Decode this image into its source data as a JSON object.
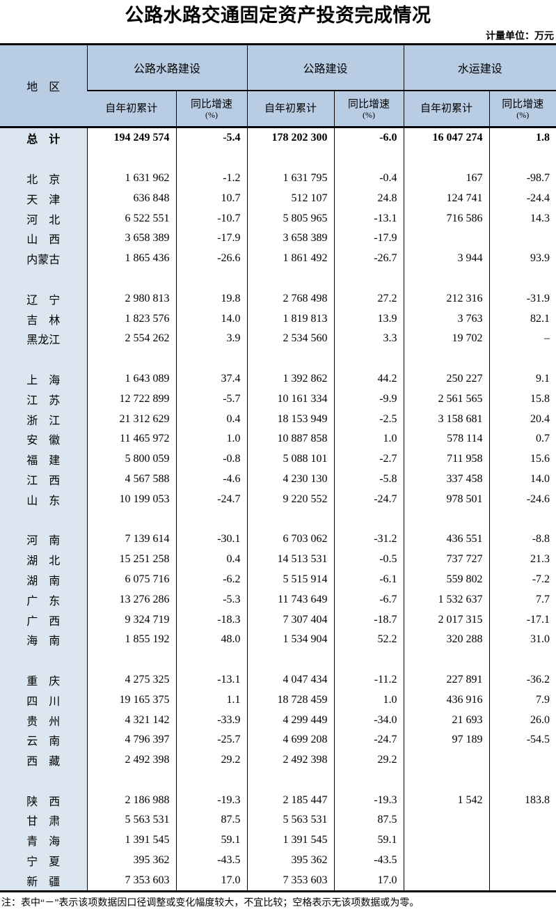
{
  "title": "公路水路交通固定资产投资完成情况",
  "unit_note": "计量单位：万元",
  "footnote": "注：表中“－”表示该项数据因口径调整或变化幅度较大，不宜比较；空格表示无该项数据或为零。",
  "colors": {
    "header_bg": "#B8CCE4",
    "region_col_bg": "#DCE6F1",
    "border": "#000000"
  },
  "table": {
    "region_header": "地　区",
    "groups": [
      "公路水路建设",
      "公路建设",
      "水运建设"
    ],
    "sub_cumulative": "自年初累计",
    "sub_growth_label": "同比增速",
    "sub_growth_unit": "(%)",
    "rows": [
      {
        "region": "总　计",
        "bold": true,
        "values": [
          "194 249 574",
          "-5.4",
          "178 202 300",
          "-6.0",
          "16 047 274",
          "1.8"
        ]
      },
      {
        "blank": true
      },
      {
        "region": "北　京",
        "values": [
          "1 631 962",
          "-1.2",
          "1 631 795",
          "-0.4",
          "167",
          "-98.7"
        ]
      },
      {
        "region": "天　津",
        "values": [
          "636 848",
          "10.7",
          "512 107",
          "24.8",
          "124 741",
          "-24.4"
        ]
      },
      {
        "region": "河　北",
        "values": [
          "6 522 551",
          "-10.7",
          "5 805 965",
          "-13.1",
          "716 586",
          "14.3"
        ]
      },
      {
        "region": "山　西",
        "values": [
          "3 658 389",
          "-17.9",
          "3 658 389",
          "-17.9",
          "",
          ""
        ]
      },
      {
        "region": "内蒙古",
        "values": [
          "1 865 436",
          "-26.6",
          "1 861 492",
          "-26.7",
          "3 944",
          "93.9"
        ]
      },
      {
        "blank": true
      },
      {
        "region": "辽　宁",
        "values": [
          "2 980 813",
          "19.8",
          "2 768 498",
          "27.2",
          "212 316",
          "-31.9"
        ]
      },
      {
        "region": "吉　林",
        "values": [
          "1 823 576",
          "14.0",
          "1 819 813",
          "13.9",
          "3 763",
          "82.1"
        ]
      },
      {
        "region": "黑龙江",
        "values": [
          "2 554 262",
          "3.9",
          "2 534 560",
          "3.3",
          "19 702",
          "–"
        ]
      },
      {
        "blank": true
      },
      {
        "region": "上　海",
        "values": [
          "1 643 089",
          "37.4",
          "1 392 862",
          "44.2",
          "250 227",
          "9.1"
        ]
      },
      {
        "region": "江　苏",
        "values": [
          "12 722 899",
          "-5.7",
          "10 161 334",
          "-9.9",
          "2 561 565",
          "15.8"
        ]
      },
      {
        "region": "浙　江",
        "values": [
          "21 312 629",
          "0.4",
          "18 153 949",
          "-2.5",
          "3 158 681",
          "20.4"
        ]
      },
      {
        "region": "安　徽",
        "values": [
          "11 465 972",
          "1.0",
          "10 887 858",
          "1.0",
          "578 114",
          "0.7"
        ]
      },
      {
        "region": "福　建",
        "values": [
          "5 800 059",
          "-0.8",
          "5 088 101",
          "-2.7",
          "711 958",
          "15.6"
        ]
      },
      {
        "region": "江　西",
        "values": [
          "4 567 588",
          "-4.6",
          "4 230 130",
          "-5.8",
          "337 458",
          "14.0"
        ]
      },
      {
        "region": "山　东",
        "values": [
          "10 199 053",
          "-24.7",
          "9 220 552",
          "-24.7",
          "978 501",
          "-24.6"
        ]
      },
      {
        "blank": true
      },
      {
        "region": "河　南",
        "values": [
          "7 139 614",
          "-30.1",
          "6 703 062",
          "-31.2",
          "436 551",
          "-8.8"
        ]
      },
      {
        "region": "湖　北",
        "values": [
          "15 251 258",
          "0.4",
          "14 513 531",
          "-0.5",
          "737 727",
          "21.3"
        ]
      },
      {
        "region": "湖　南",
        "values": [
          "6 075 716",
          "-6.2",
          "5 515 914",
          "-6.1",
          "559 802",
          "-7.2"
        ]
      },
      {
        "region": "广　东",
        "values": [
          "13 276 286",
          "-5.3",
          "11 743 649",
          "-6.7",
          "1 532 637",
          "7.7"
        ]
      },
      {
        "region": "广　西",
        "values": [
          "9 324 719",
          "-18.3",
          "7 307 404",
          "-18.7",
          "2 017 315",
          "-17.1"
        ]
      },
      {
        "region": "海　南",
        "values": [
          "1 855 192",
          "48.0",
          "1 534 904",
          "52.2",
          "320 288",
          "31.0"
        ]
      },
      {
        "blank": true
      },
      {
        "region": "重　庆",
        "values": [
          "4 275 325",
          "-13.1",
          "4 047 434",
          "-11.2",
          "227 891",
          "-36.2"
        ]
      },
      {
        "region": "四　川",
        "values": [
          "19 165 375",
          "1.1",
          "18 728 459",
          "1.0",
          "436 916",
          "7.9"
        ]
      },
      {
        "region": "贵　州",
        "values": [
          "4 321 142",
          "-33.9",
          "4 299 449",
          "-34.0",
          "21 693",
          "26.0"
        ]
      },
      {
        "region": "云　南",
        "values": [
          "4 796 397",
          "-25.7",
          "4 699 208",
          "-24.7",
          "97 189",
          "-54.5"
        ]
      },
      {
        "region": "西　藏",
        "values": [
          "2 492 398",
          "29.2",
          "2 492 398",
          "29.2",
          "",
          ""
        ]
      },
      {
        "blank": true
      },
      {
        "region": "陕　西",
        "values": [
          "2 186 988",
          "-19.3",
          "2 185 447",
          "-19.3",
          "1 542",
          "183.8"
        ]
      },
      {
        "region": "甘　肃",
        "values": [
          "5 563 531",
          "87.5",
          "5 563 531",
          "87.5",
          "",
          ""
        ]
      },
      {
        "region": "青　海",
        "values": [
          "1 391 545",
          "59.1",
          "1 391 545",
          "59.1",
          "",
          ""
        ]
      },
      {
        "region": "宁　夏",
        "values": [
          "395 362",
          "-43.5",
          "395 362",
          "-43.5",
          "",
          ""
        ]
      },
      {
        "region": "新　疆",
        "values": [
          "7 353 603",
          "17.0",
          "7 353 603",
          "17.0",
          "",
          ""
        ]
      }
    ]
  }
}
